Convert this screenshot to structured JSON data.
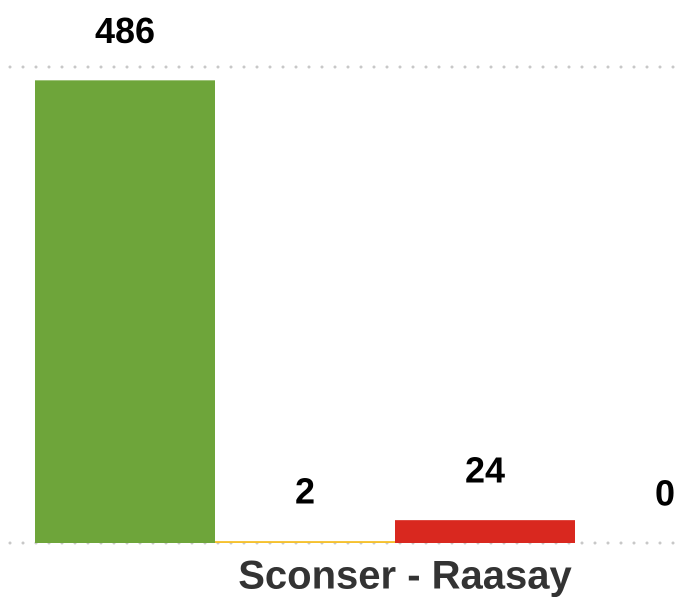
{
  "chart_data": {
    "type": "bar",
    "categories": [
      "Sconser - Raasay"
    ],
    "series": [
      {
        "color": "#6ea53a",
        "values": [
          486
        ]
      },
      {
        "color": "#f5c12e",
        "values": [
          2
        ]
      },
      {
        "color": "#d9281f",
        "values": [
          24
        ]
      },
      {
        "values": [
          0
        ]
      }
    ],
    "ylim": [
      0,
      500
    ],
    "yticks": [
      0,
      500
    ],
    "grid": true
  }
}
